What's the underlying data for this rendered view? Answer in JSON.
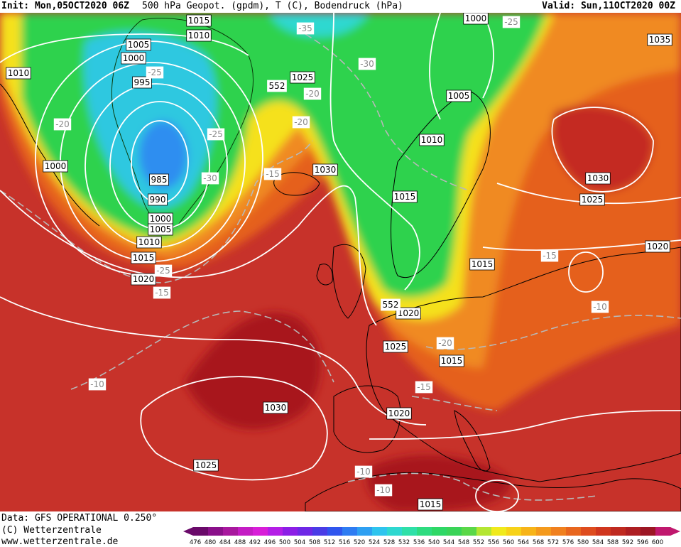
{
  "header": {
    "init": "Init: Mon,05OCT2020 06Z",
    "description": "500 hPa Geopot. (gpdm), T (C), Bodendruck (hPa)",
    "valid": "Valid: Sun,11OCT2020 00Z"
  },
  "footer": {
    "data_source": "Data: GFS OPERATIONAL 0.250°",
    "copyright": "(C) Wetterzentrale",
    "website": "www.wetterzentrale.de"
  },
  "colors": {
    "ocean_warm": "#c7322a",
    "core_red": "#a8181e",
    "orange": "#e5601c",
    "light_orange": "#f08a24",
    "yellow": "#f5e11a",
    "green": "#2fd24e",
    "green_light": "#4be35a",
    "cyan": "#2fc8e0",
    "blue": "#2f8ef0",
    "isobar": "#ffffff",
    "isotherm": "#b8b8b8",
    "coast": "#000000"
  },
  "color_scale": {
    "ticks": [
      "476",
      "480",
      "484",
      "488",
      "492",
      "496",
      "500",
      "504",
      "508",
      "512",
      "516",
      "520",
      "524",
      "528",
      "532",
      "536",
      "540",
      "544",
      "548",
      "552",
      "556",
      "560",
      "564",
      "568",
      "572",
      "576",
      "580",
      "584",
      "588",
      "592",
      "596",
      "600"
    ],
    "colors": [
      "#6a0a6a",
      "#8a108a",
      "#a8189e",
      "#c41cc4",
      "#d81ed8",
      "#b41ee6",
      "#8c1ee6",
      "#6e28e6",
      "#4a3ce6",
      "#3056ee",
      "#2e7cf2",
      "#2ea0f2",
      "#2ec4ee",
      "#2ed8d0",
      "#2ee0a8",
      "#2edc80",
      "#2ed866",
      "#3ad458",
      "#5ad848",
      "#b4e632",
      "#f0ea1c",
      "#f7d218",
      "#f7b418",
      "#f49a1c",
      "#f0801e",
      "#e8661e",
      "#de4c1e",
      "#d0361e",
      "#bf2a20",
      "#ad1e22",
      "#9c1624",
      "#c0186e"
    ]
  },
  "isobars": [
    {
      "label": "1015"
    },
    {
      "label": "1010"
    },
    {
      "label": "1005"
    },
    {
      "label": "1000"
    },
    {
      "label": "995"
    },
    {
      "label": "1010"
    },
    {
      "label": "1000"
    },
    {
      "label": "985"
    },
    {
      "label": "990"
    },
    {
      "label": "1000"
    },
    {
      "label": "1005"
    },
    {
      "label": "1010"
    },
    {
      "label": "1015"
    },
    {
      "label": "1020"
    },
    {
      "label": "1025"
    },
    {
      "label": "1030"
    },
    {
      "label": "1000"
    },
    {
      "label": "1005"
    },
    {
      "label": "1010"
    },
    {
      "label": "1015"
    },
    {
      "label": "1035"
    },
    {
      "label": "1030"
    },
    {
      "label": "1025"
    },
    {
      "label": "1020"
    },
    {
      "label": "1015"
    },
    {
      "label": "1020"
    },
    {
      "label": "1025"
    },
    {
      "label": "1015"
    },
    {
      "label": "1030"
    },
    {
      "label": "1020"
    },
    {
      "label": "1025"
    },
    {
      "label": "1015"
    }
  ],
  "isotherms": [
    {
      "label": "-35"
    },
    {
      "label": "-25"
    },
    {
      "label": "-30"
    },
    {
      "label": "-25"
    },
    {
      "label": "-20"
    },
    {
      "label": "-20"
    },
    {
      "label": "-25"
    },
    {
      "label": "-30"
    },
    {
      "label": "-15"
    },
    {
      "label": "-20"
    },
    {
      "label": "-15"
    },
    {
      "label": "-25"
    },
    {
      "label": "-15"
    },
    {
      "label": "-10"
    },
    {
      "label": "-20"
    },
    {
      "label": "-15"
    },
    {
      "label": "-10"
    },
    {
      "label": "-10"
    },
    {
      "label": "-10"
    }
  ],
  "geopot_labels": [
    {
      "label": "552"
    },
    {
      "label": "552"
    }
  ]
}
